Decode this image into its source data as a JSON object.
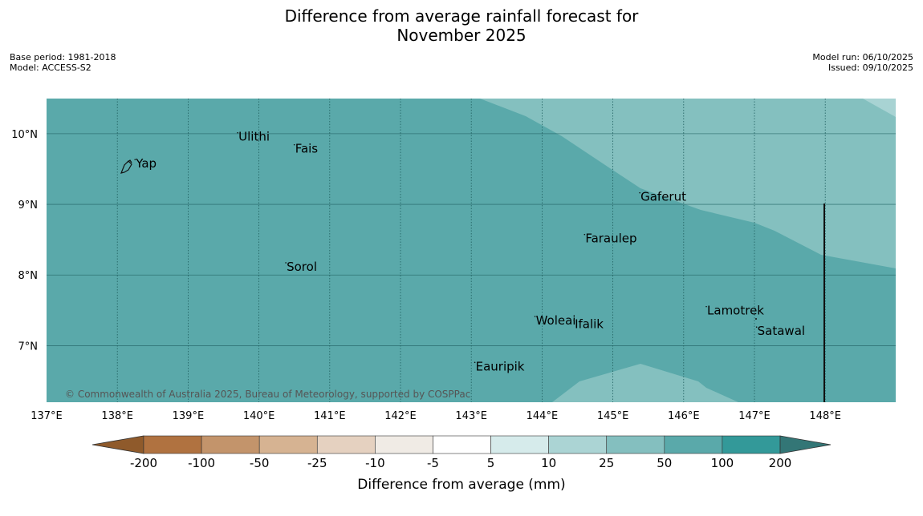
{
  "title": {
    "line1": "Difference from average rainfall forecast for",
    "line2": "November 2025"
  },
  "info_left": {
    "base_period": "Base period: 1981-2018",
    "model": "Model: ACCESS-S2"
  },
  "info_right": {
    "model_run": "Model run: 06/10/2025",
    "issued": "Issued: 09/10/2025"
  },
  "map": {
    "lon_range": [
      137,
      149
    ],
    "lat_range": [
      6.2,
      10.5
    ],
    "lon_ticks": [
      "137°E",
      "138°E",
      "139°E",
      "140°E",
      "141°E",
      "142°E",
      "143°E",
      "144°E",
      "145°E",
      "146°E",
      "147°E",
      "148°E"
    ],
    "lat_ticks": [
      "10°N",
      "9°N",
      "8°N",
      "7°N"
    ],
    "places": [
      {
        "name": "Yap",
        "lon": 138.25,
        "lat": 9.52
      },
      {
        "name": "Ulithi",
        "lon": 139.7,
        "lat": 9.9
      },
      {
        "name": "Fais",
        "lon": 140.5,
        "lat": 9.73
      },
      {
        "name": "Gaferut",
        "lon": 145.38,
        "lat": 9.05
      },
      {
        "name": "Faraulep",
        "lon": 144.6,
        "lat": 8.46
      },
      {
        "name": "Sorol",
        "lon": 140.38,
        "lat": 8.06
      },
      {
        "name": "Woleai",
        "lon": 143.9,
        "lat": 7.3
      },
      {
        "name": "Ifalik",
        "lon": 144.45,
        "lat": 7.25
      },
      {
        "name": "Lamotrek",
        "lon": 146.32,
        "lat": 7.44
      },
      {
        "name": "Satawal",
        "lon": 147.03,
        "lat": 7.15
      },
      {
        "name": "Eauripik",
        "lon": 143.05,
        "lat": 6.65
      }
    ],
    "copyright": "© Commonwealth of Australia 2025, Bureau of Meteorology, supported by COSPPac",
    "colors": {
      "band_50_100": "#5aa9aa",
      "band_25_50": "#84c0bf",
      "band_10_25": "#a8d3d3",
      "grid": "#1e5e5e"
    }
  },
  "colorbar": {
    "label": "Difference from average (mm)",
    "ticks": [
      "-200",
      "-100",
      "-50",
      "-25",
      "-10",
      "-5",
      "5",
      "10",
      "25",
      "50",
      "100",
      "200"
    ],
    "colors": [
      "#8f5a2b",
      "#b07240",
      "#c3946b",
      "#d6b392",
      "#e5d1c0",
      "#f0ebe5",
      "#ffffff",
      "#d6ebeb",
      "#abd4d4",
      "#84bfbf",
      "#5aa9aa",
      "#339999",
      "#337676"
    ]
  }
}
